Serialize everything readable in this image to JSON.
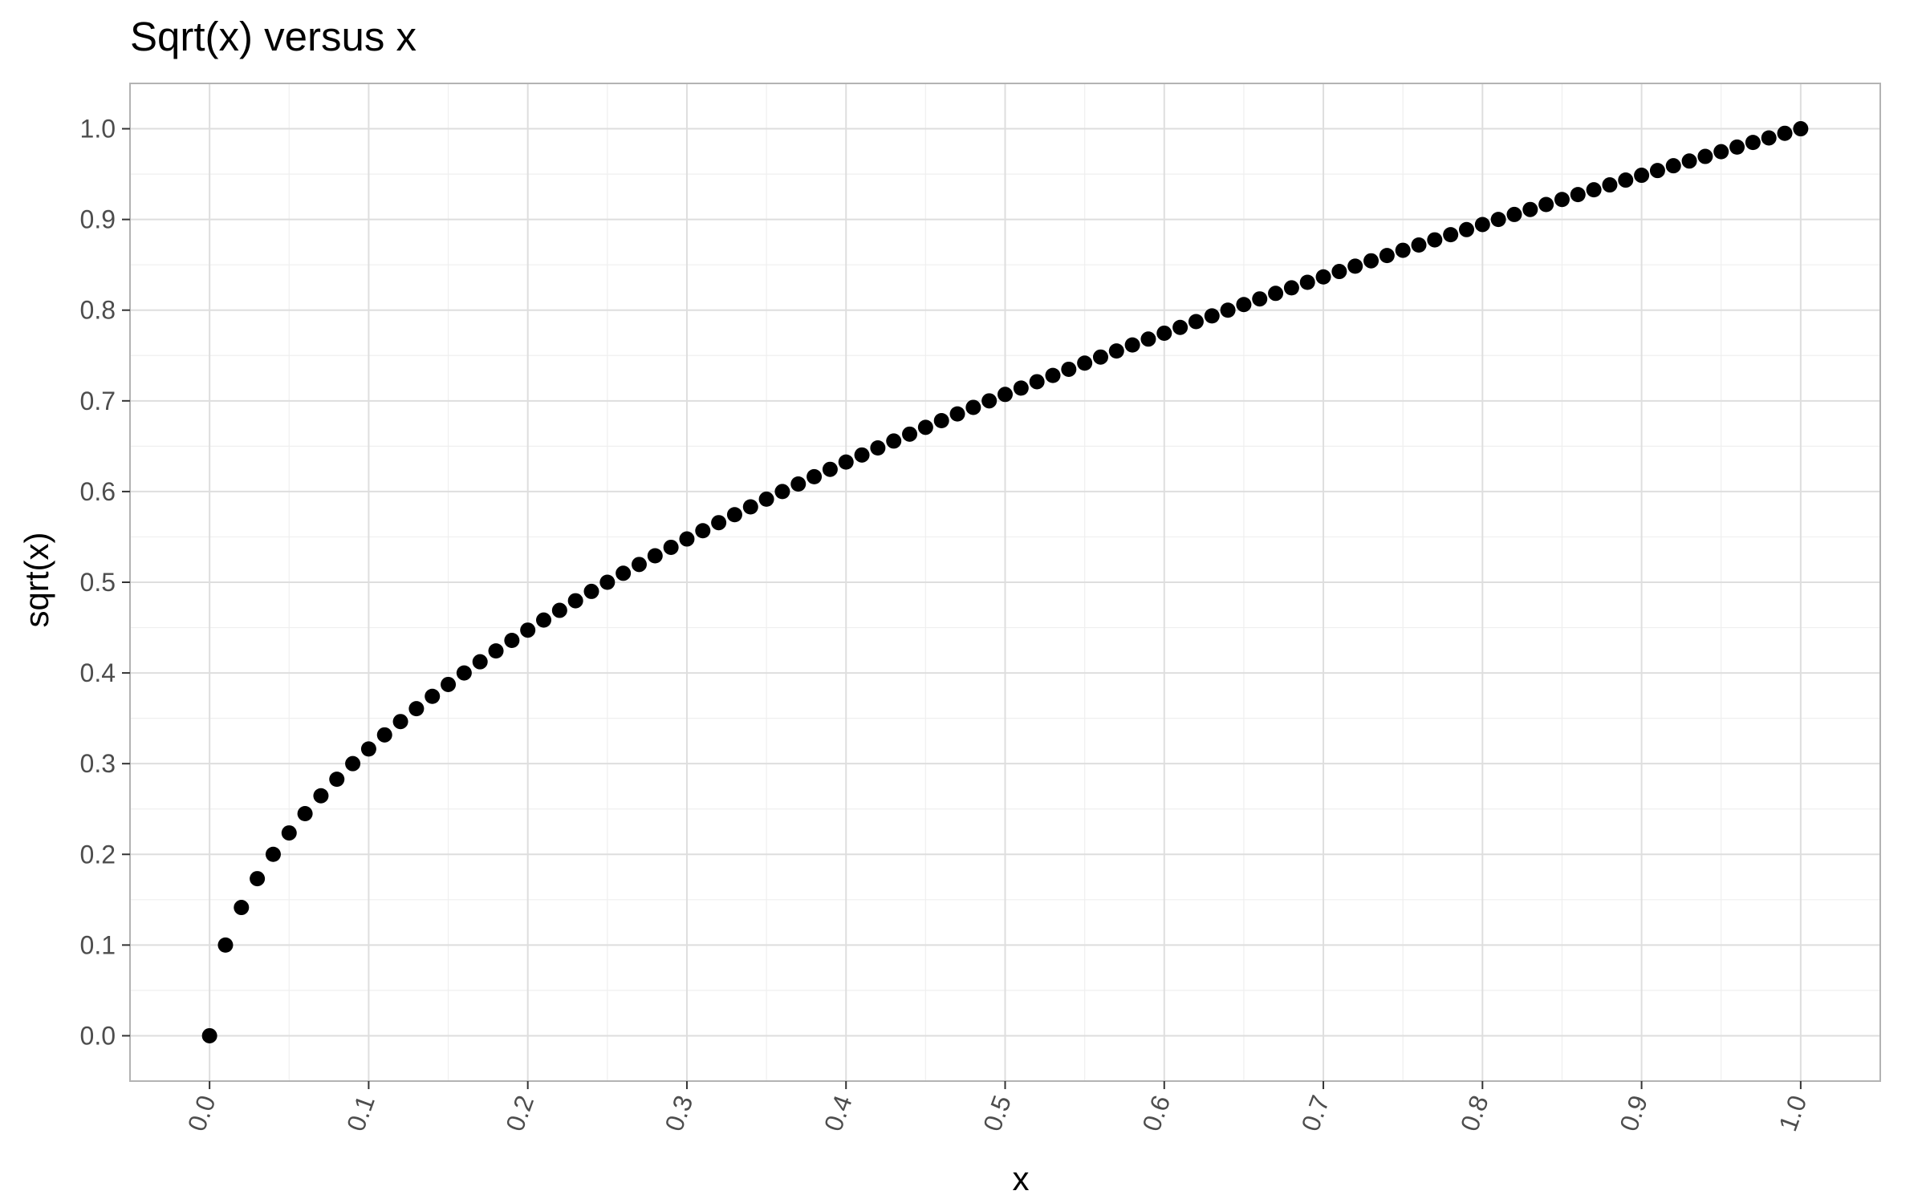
{
  "chart_data": {
    "type": "scatter",
    "title": "Sqrt(x) versus x",
    "xlabel": "x",
    "ylabel": "sqrt(x)",
    "xlim": [
      -0.05,
      1.05
    ],
    "ylim": [
      -0.05,
      1.05
    ],
    "x_ticks": [
      0.0,
      0.1,
      0.2,
      0.3,
      0.4,
      0.5,
      0.6,
      0.7,
      0.8,
      0.9,
      1.0
    ],
    "x_tick_labels": [
      "0.0",
      "0.1",
      "0.2",
      "0.3",
      "0.4",
      "0.5",
      "0.6",
      "0.7",
      "0.8",
      "0.9",
      "1.0"
    ],
    "y_ticks": [
      0.0,
      0.1,
      0.2,
      0.3,
      0.4,
      0.5,
      0.6,
      0.7,
      0.8,
      0.9,
      1.0
    ],
    "y_tick_labels": [
      "0.0",
      "0.1",
      "0.2",
      "0.3",
      "0.4",
      "0.5",
      "0.6",
      "0.7",
      "0.8",
      "0.9",
      "1.0"
    ],
    "x_tick_rotation_deg": -70,
    "grid": true,
    "legend": "none",
    "colors": {
      "points": "#000000",
      "panel_border": "#b3b3b3",
      "grid_major": "#dedede",
      "grid_minor": "#efefef",
      "tick_text": "#4d4d4d"
    },
    "points": [
      {
        "x": 0.0,
        "y": 0.0
      },
      {
        "x": 0.01,
        "y": 0.1
      },
      {
        "x": 0.02,
        "y": 0.1414
      },
      {
        "x": 0.03,
        "y": 0.1732
      },
      {
        "x": 0.04,
        "y": 0.2
      },
      {
        "x": 0.05,
        "y": 0.2236
      },
      {
        "x": 0.06,
        "y": 0.2449
      },
      {
        "x": 0.07,
        "y": 0.2646
      },
      {
        "x": 0.08,
        "y": 0.2828
      },
      {
        "x": 0.09,
        "y": 0.3
      },
      {
        "x": 0.1,
        "y": 0.3162
      },
      {
        "x": 0.11,
        "y": 0.3317
      },
      {
        "x": 0.12,
        "y": 0.3464
      },
      {
        "x": 0.13,
        "y": 0.3606
      },
      {
        "x": 0.14,
        "y": 0.3742
      },
      {
        "x": 0.15,
        "y": 0.3873
      },
      {
        "x": 0.16,
        "y": 0.4
      },
      {
        "x": 0.17,
        "y": 0.4123
      },
      {
        "x": 0.18,
        "y": 0.4243
      },
      {
        "x": 0.19,
        "y": 0.4359
      },
      {
        "x": 0.2,
        "y": 0.4472
      },
      {
        "x": 0.21,
        "y": 0.4583
      },
      {
        "x": 0.22,
        "y": 0.469
      },
      {
        "x": 0.23,
        "y": 0.4796
      },
      {
        "x": 0.24,
        "y": 0.4899
      },
      {
        "x": 0.25,
        "y": 0.5
      },
      {
        "x": 0.26,
        "y": 0.5099
      },
      {
        "x": 0.27,
        "y": 0.5196
      },
      {
        "x": 0.28,
        "y": 0.5292
      },
      {
        "x": 0.29,
        "y": 0.5385
      },
      {
        "x": 0.3,
        "y": 0.5477
      },
      {
        "x": 0.31,
        "y": 0.5568
      },
      {
        "x": 0.32,
        "y": 0.5657
      },
      {
        "x": 0.33,
        "y": 0.5745
      },
      {
        "x": 0.34,
        "y": 0.5831
      },
      {
        "x": 0.35,
        "y": 0.5916
      },
      {
        "x": 0.36,
        "y": 0.6
      },
      {
        "x": 0.37,
        "y": 0.6083
      },
      {
        "x": 0.38,
        "y": 0.6164
      },
      {
        "x": 0.39,
        "y": 0.6245
      },
      {
        "x": 0.4,
        "y": 0.6325
      },
      {
        "x": 0.41,
        "y": 0.6403
      },
      {
        "x": 0.42,
        "y": 0.6481
      },
      {
        "x": 0.43,
        "y": 0.6557
      },
      {
        "x": 0.44,
        "y": 0.6633
      },
      {
        "x": 0.45,
        "y": 0.6708
      },
      {
        "x": 0.46,
        "y": 0.6782
      },
      {
        "x": 0.47,
        "y": 0.6856
      },
      {
        "x": 0.48,
        "y": 0.6928
      },
      {
        "x": 0.49,
        "y": 0.7
      },
      {
        "x": 0.5,
        "y": 0.7071
      },
      {
        "x": 0.51,
        "y": 0.7141
      },
      {
        "x": 0.52,
        "y": 0.7211
      },
      {
        "x": 0.53,
        "y": 0.728
      },
      {
        "x": 0.54,
        "y": 0.7348
      },
      {
        "x": 0.55,
        "y": 0.7416
      },
      {
        "x": 0.56,
        "y": 0.7483
      },
      {
        "x": 0.57,
        "y": 0.755
      },
      {
        "x": 0.58,
        "y": 0.7616
      },
      {
        "x": 0.59,
        "y": 0.7681
      },
      {
        "x": 0.6,
        "y": 0.7746
      },
      {
        "x": 0.61,
        "y": 0.781
      },
      {
        "x": 0.62,
        "y": 0.7874
      },
      {
        "x": 0.63,
        "y": 0.7937
      },
      {
        "x": 0.64,
        "y": 0.8
      },
      {
        "x": 0.65,
        "y": 0.8062
      },
      {
        "x": 0.66,
        "y": 0.8124
      },
      {
        "x": 0.67,
        "y": 0.8185
      },
      {
        "x": 0.68,
        "y": 0.8246
      },
      {
        "x": 0.69,
        "y": 0.8307
      },
      {
        "x": 0.7,
        "y": 0.8367
      },
      {
        "x": 0.71,
        "y": 0.8426
      },
      {
        "x": 0.72,
        "y": 0.8485
      },
      {
        "x": 0.73,
        "y": 0.8544
      },
      {
        "x": 0.74,
        "y": 0.8602
      },
      {
        "x": 0.75,
        "y": 0.866
      },
      {
        "x": 0.76,
        "y": 0.8718
      },
      {
        "x": 0.77,
        "y": 0.8775
      },
      {
        "x": 0.78,
        "y": 0.8832
      },
      {
        "x": 0.79,
        "y": 0.8888
      },
      {
        "x": 0.8,
        "y": 0.8944
      },
      {
        "x": 0.81,
        "y": 0.9
      },
      {
        "x": 0.82,
        "y": 0.9055
      },
      {
        "x": 0.83,
        "y": 0.911
      },
      {
        "x": 0.84,
        "y": 0.9165
      },
      {
        "x": 0.85,
        "y": 0.922
      },
      {
        "x": 0.86,
        "y": 0.9274
      },
      {
        "x": 0.87,
        "y": 0.9327
      },
      {
        "x": 0.88,
        "y": 0.9381
      },
      {
        "x": 0.89,
        "y": 0.9434
      },
      {
        "x": 0.9,
        "y": 0.9487
      },
      {
        "x": 0.91,
        "y": 0.9539
      },
      {
        "x": 0.92,
        "y": 0.9592
      },
      {
        "x": 0.93,
        "y": 0.9644
      },
      {
        "x": 0.94,
        "y": 0.9695
      },
      {
        "x": 0.95,
        "y": 0.9747
      },
      {
        "x": 0.96,
        "y": 0.9798
      },
      {
        "x": 0.97,
        "y": 0.9849
      },
      {
        "x": 0.98,
        "y": 0.9899
      },
      {
        "x": 0.99,
        "y": 0.995
      },
      {
        "x": 1.0,
        "y": 1.0
      }
    ]
  }
}
